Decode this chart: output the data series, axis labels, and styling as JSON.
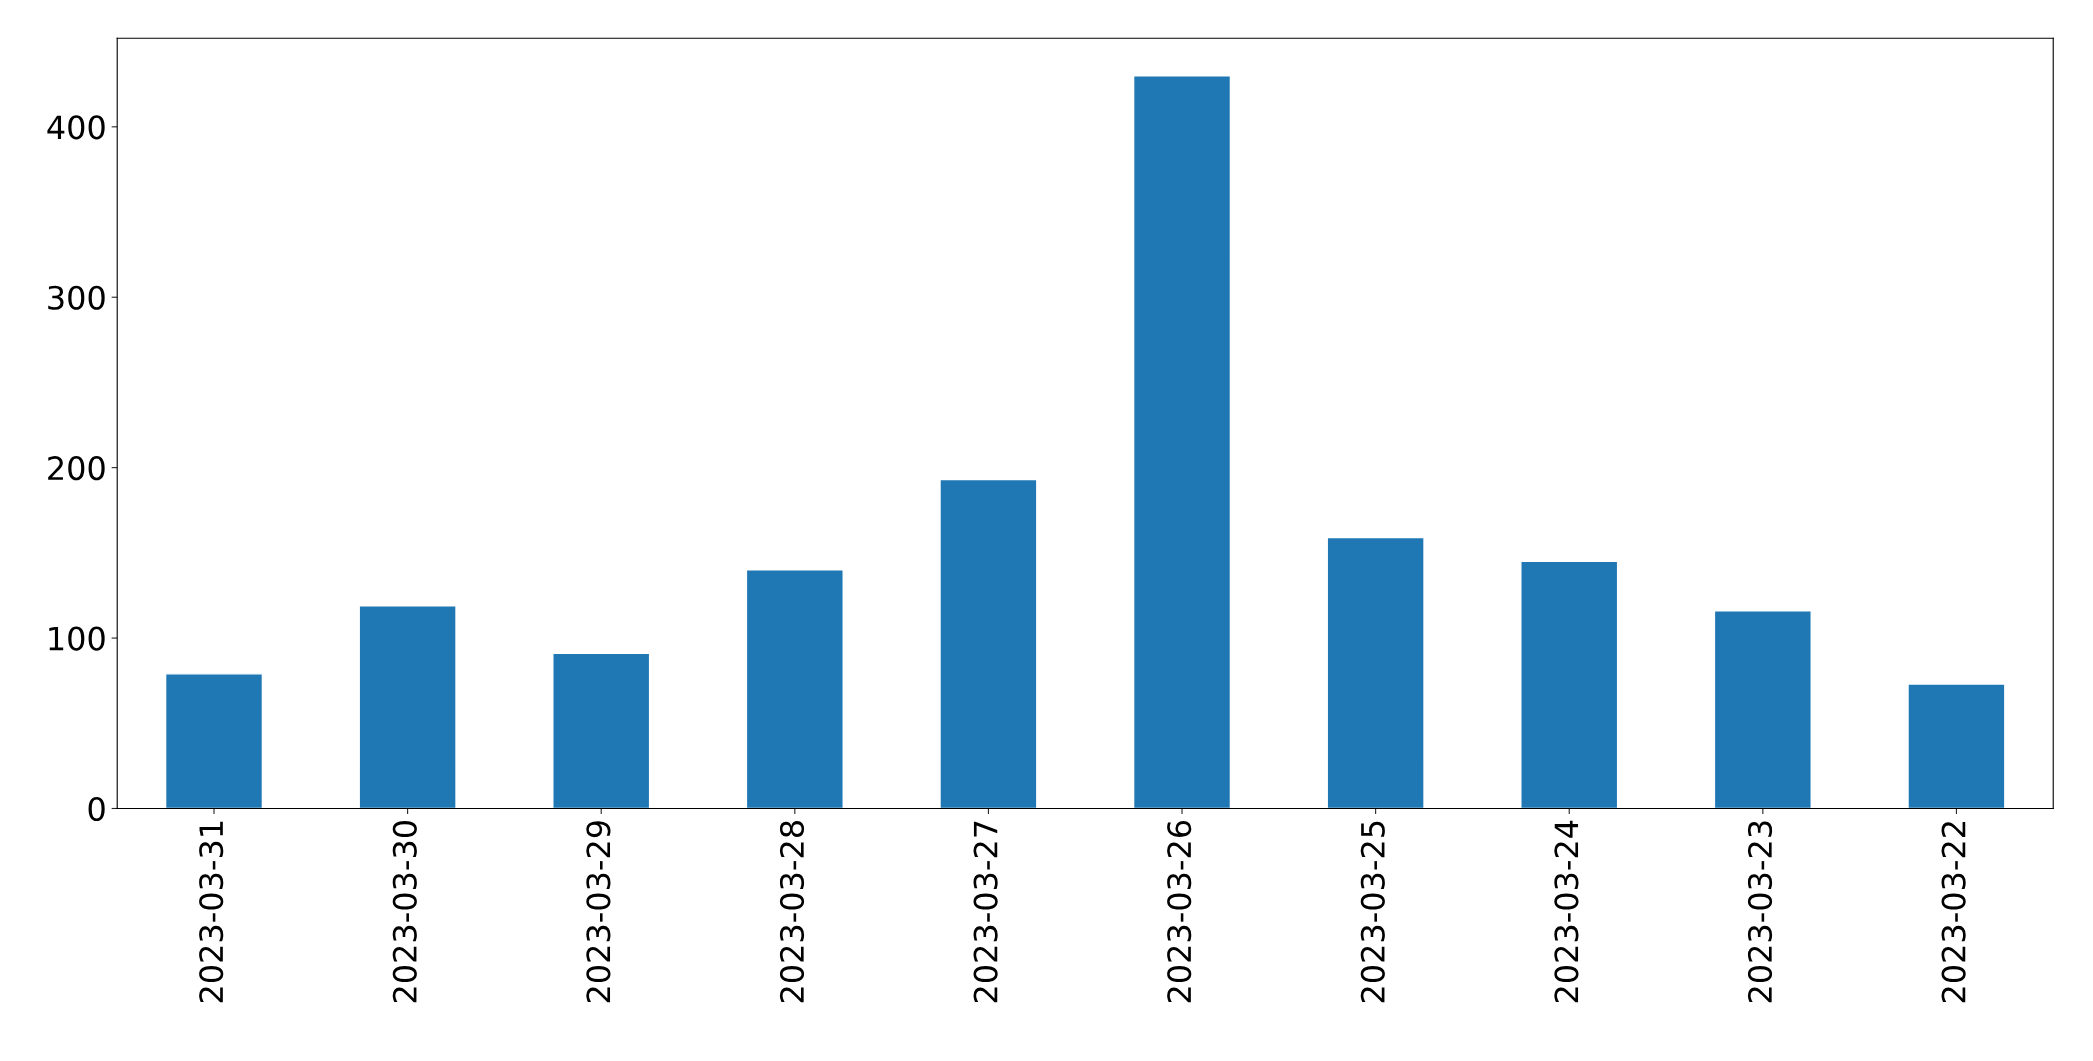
{
  "chart_data": {
    "type": "bar",
    "categories": [
      "2023-03-31",
      "2023-03-30",
      "2023-03-29",
      "2023-03-28",
      "2023-03-27",
      "2023-03-26",
      "2023-03-25",
      "2023-03-24",
      "2023-03-23",
      "2023-03-22"
    ],
    "values": [
      79,
      119,
      91,
      140,
      193,
      430,
      159,
      145,
      116,
      73
    ],
    "color": "#1f77b4",
    "ylim": [
      0,
      452
    ],
    "yticks": [
      0,
      100,
      200,
      300,
      400
    ],
    "grid": false
  }
}
